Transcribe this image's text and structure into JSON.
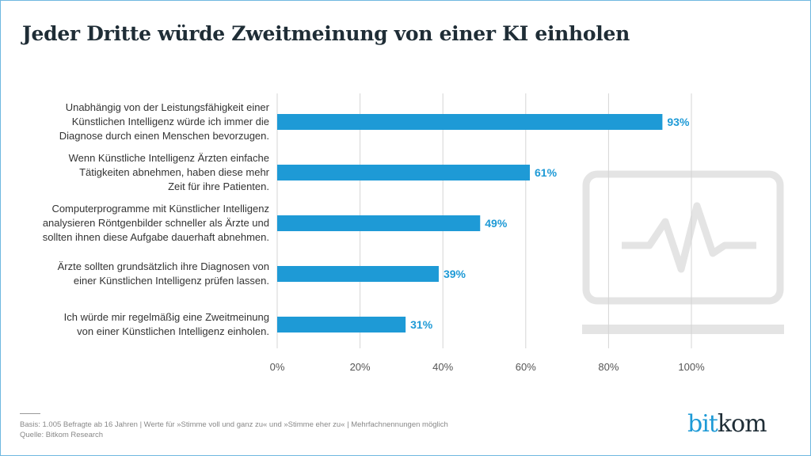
{
  "title": "Jeder Dritte würde Zweitmeinung von einer KI einholen",
  "chart_data": {
    "type": "bar",
    "orientation": "horizontal",
    "categories": [
      "Unabhängig von der Leistungsfähigkeit einer Künstlichen Intelligenz würde ich immer die Diagnose durch einen Menschen bevorzugen.",
      "Wenn Künstliche Intelligenz Ärzten einfache Tätigkeiten abnehmen, haben diese mehr Zeit für ihre Patienten.",
      "Computerprogramme mit Künstlicher Intelligenz analysieren Röntgenbilder schneller als Ärzte und sollten ihnen diese Aufgabe dauerhaft abnehmen.",
      "Ärzte sollten grundsätzlich ihre Diagnosen von einer Künstlichen Intelligenz prüfen lassen.",
      "Ich würde mir regelmäßig eine Zweitmeinung von einer Künstlichen Intelligenz einholen."
    ],
    "category_lines": [
      [
        "Unabhängig von der Leistungsfähigkeit einer",
        "Künstlichen Intelligenz würde ich immer die",
        "Diagnose durch einen Menschen bevorzugen."
      ],
      [
        "Wenn Künstliche Intelligenz Ärzten einfache",
        "Tätigkeiten abnehmen, haben diese mehr",
        "Zeit für ihre Patienten."
      ],
      [
        "Computerprogramme mit Künstlicher Intelligenz",
        "analysieren Röntgenbilder schneller als Ärzte und",
        "sollten ihnen diese Aufgabe dauerhaft abnehmen."
      ],
      [
        "Ärzte sollten grundsätzlich ihre Diagnosen von",
        "einer Künstlichen Intelligenz prüfen lassen."
      ],
      [
        "Ich würde mir regelmäßig eine Zweitmeinung",
        "von einer Künstlichen Intelligenz einholen."
      ]
    ],
    "values": [
      93,
      61,
      49,
      39,
      31
    ],
    "data_labels": [
      "93%",
      "61%",
      "49%",
      "39%",
      "31%"
    ],
    "xlim": [
      0,
      100
    ],
    "x_ticks": [
      "0%",
      "20%",
      "40%",
      "60%",
      "80%",
      "100%"
    ],
    "grid": true,
    "bar_color": "#1e9ad6"
  },
  "footer": {
    "basis": "Basis: 1.005 Befragte ab 16 Jahren | Werte für »Stimme voll und ganz zu« und »Stimme eher zu« | Mehrfachnennungen möglich",
    "source": "Quelle: Bitkom Research"
  },
  "logo": {
    "part1": "bit",
    "part2": "kom",
    "color1": "#1e9ad6",
    "color2": "#1f2d36"
  },
  "background_icon": "monitor-pulse-icon"
}
